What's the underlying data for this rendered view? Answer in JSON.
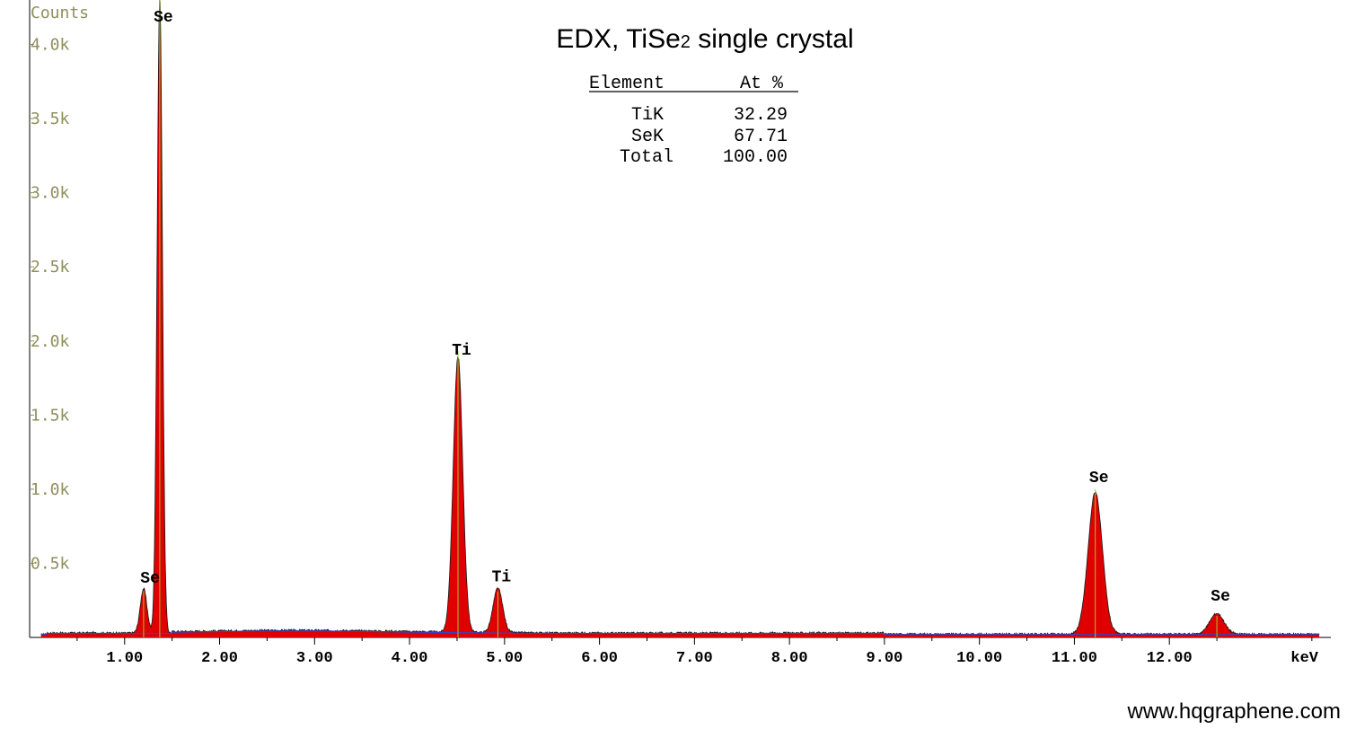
{
  "chart_data": {
    "type": "area",
    "title": {
      "prefix": "EDX, TiSe",
      "sub": "2",
      "suffix": " single crystal"
    },
    "ylabel": "Counts",
    "xunit": "keV",
    "xlim": [
      0.0,
      13.7
    ],
    "ylim": [
      0,
      4300
    ],
    "ytick_labels": [
      {
        "value": 500,
        "label": "0.5k"
      },
      {
        "value": 1000,
        "label": "1.0k"
      },
      {
        "value": 1500,
        "label": "1.5k"
      },
      {
        "value": 2000,
        "label": "2.0k"
      },
      {
        "value": 2500,
        "label": "2.5k"
      },
      {
        "value": 3000,
        "label": "3.0k"
      },
      {
        "value": 3500,
        "label": "3.5k"
      },
      {
        "value": 4000,
        "label": "4.0k"
      }
    ],
    "xtick_labels": [
      {
        "value": 1,
        "label": "1.00"
      },
      {
        "value": 2,
        "label": "2.00"
      },
      {
        "value": 3,
        "label": "3.00"
      },
      {
        "value": 4,
        "label": "4.00"
      },
      {
        "value": 5,
        "label": "5.00"
      },
      {
        "value": 6,
        "label": "6.00"
      },
      {
        "value": 7,
        "label": "7.00"
      },
      {
        "value": 8,
        "label": "8.00"
      },
      {
        "value": 9,
        "label": "9.00"
      },
      {
        "value": 10,
        "label": "10.00"
      },
      {
        "value": 11,
        "label": "11.00"
      },
      {
        "value": 12,
        "label": "12.00"
      }
    ],
    "peaks": [
      {
        "element": "Se",
        "energy": 1.2,
        "counts": 300,
        "width": 0.035
      },
      {
        "element": "Se",
        "energy": 1.37,
        "counts": 4300,
        "width": 0.028
      },
      {
        "element": "Ti",
        "energy": 4.51,
        "counts": 1860,
        "width": 0.05
      },
      {
        "element": "Ti",
        "energy": 4.93,
        "counts": 300,
        "width": 0.05
      },
      {
        "element": "Se",
        "energy": 11.22,
        "counts": 960,
        "width": 0.075
      },
      {
        "element": "Se",
        "energy": 12.5,
        "counts": 140,
        "width": 0.075
      }
    ],
    "peak_labels": [
      {
        "text": "Se",
        "energy": 1.37,
        "counts": 4300
      },
      {
        "text": "Se",
        "energy": 1.23,
        "counts": 320
      },
      {
        "text": "Ti",
        "energy": 4.51,
        "counts": 1860
      },
      {
        "text": "Ti",
        "energy": 4.93,
        "counts": 330
      },
      {
        "text": "Se",
        "energy": 11.22,
        "counts": 1000
      },
      {
        "text": "Se",
        "energy": 12.5,
        "counts": 200
      }
    ],
    "background_counts": 30,
    "colors": {
      "fill": "#e00000",
      "outline": "#1a1a1a",
      "background_line": "#3344cc",
      "marker": "#99cc33"
    }
  },
  "results_table": {
    "headers": [
      "Element",
      "At %"
    ],
    "rows": [
      {
        "element": "TiK",
        "value": "32.29"
      },
      {
        "element": "SeK",
        "value": "67.71"
      },
      {
        "element": "Total",
        "value": "100.00"
      }
    ]
  },
  "watermark": "www.hqgraphene.com"
}
